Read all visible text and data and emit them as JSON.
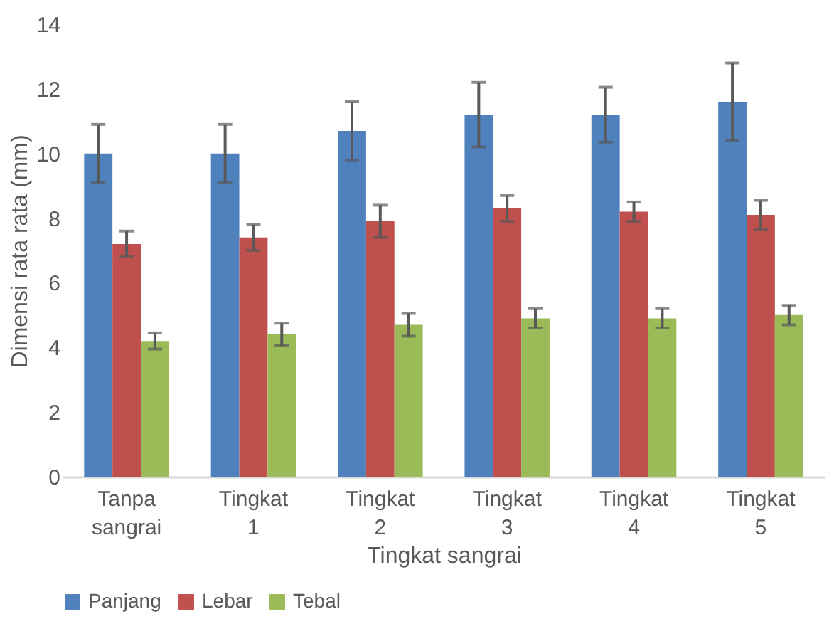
{
  "chart_data": {
    "type": "bar",
    "xlabel": "Tingkat sangrai",
    "ylabel": "Dimensi rata rata (mm)",
    "categories": [
      "Tanpa sangrai",
      "Tingkat 1",
      "Tingkat 2",
      "Tingkat 3",
      "Tingkat 4",
      "Tingkat 5"
    ],
    "series": [
      {
        "name": "Panjang",
        "color": "#4f81bd",
        "values": [
          10.0,
          10.0,
          10.7,
          11.2,
          11.2,
          11.6
        ],
        "errors": [
          0.9,
          0.9,
          0.9,
          1.0,
          0.85,
          1.2
        ]
      },
      {
        "name": "Lebar",
        "color": "#c0504d",
        "values": [
          7.2,
          7.4,
          7.9,
          8.3,
          8.2,
          8.1
        ],
        "errors": [
          0.4,
          0.4,
          0.5,
          0.4,
          0.3,
          0.45
        ]
      },
      {
        "name": "Tebal",
        "color": "#9bbb59",
        "values": [
          4.2,
          4.4,
          4.7,
          4.9,
          4.9,
          5.0
        ],
        "errors": [
          0.25,
          0.35,
          0.35,
          0.3,
          0.3,
          0.3
        ]
      }
    ],
    "ylim": [
      0,
      14
    ],
    "yticks": [
      0,
      2,
      4,
      6,
      8,
      10,
      12,
      14
    ],
    "grid": false,
    "legend": "bottom"
  }
}
